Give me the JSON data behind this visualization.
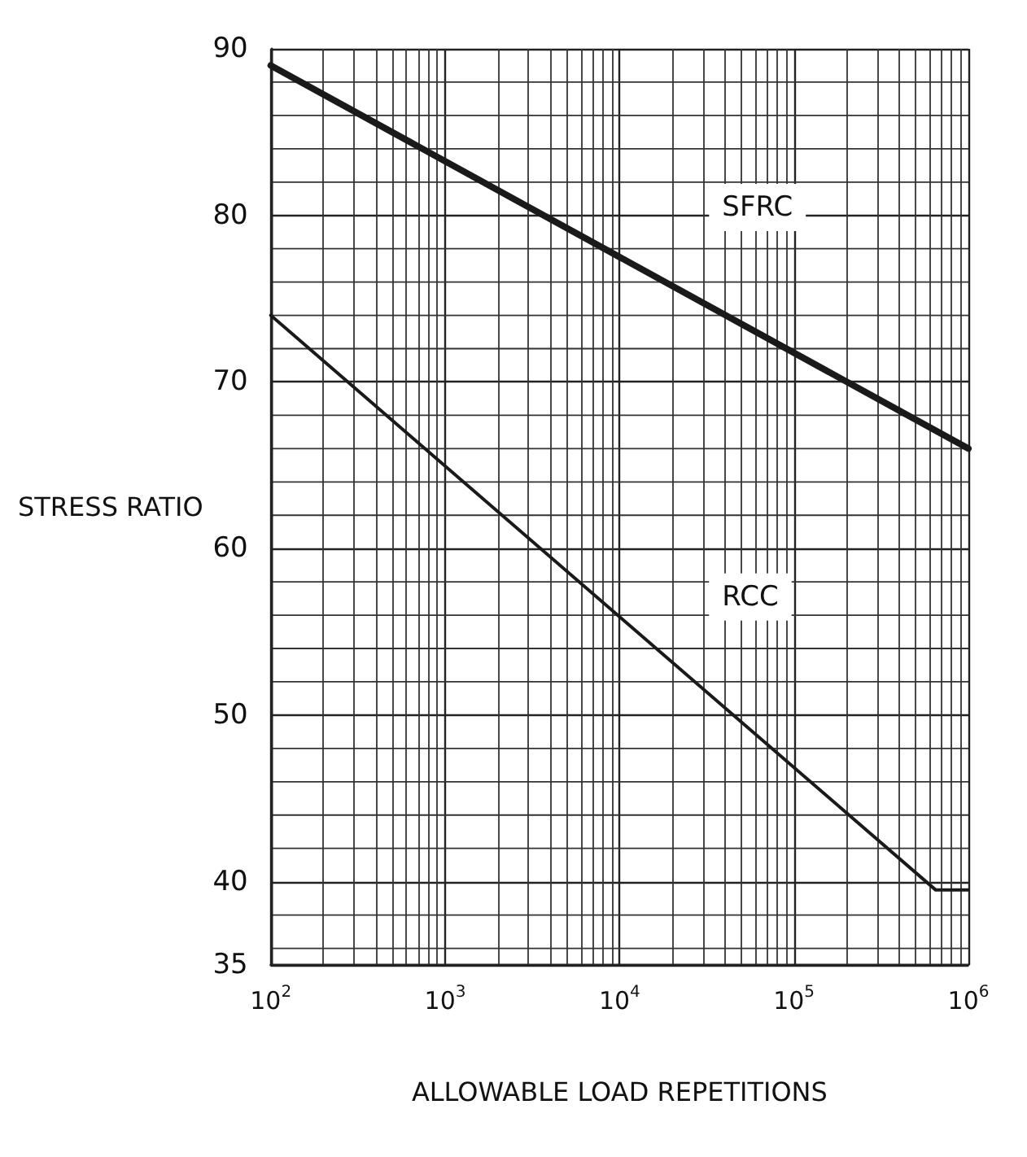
{
  "chart_data": {
    "type": "line",
    "xlabel": "ALLOWABLE LOAD REPETITIONS",
    "ylabel": "STRESS RATIO",
    "log": "x",
    "grid": true,
    "legend": false,
    "marker": "none",
    "line_style": "solid",
    "xlim": [
      100,
      1000000
    ],
    "ylim": [
      35,
      90
    ],
    "xticks": [
      {
        "value": 100,
        "label": "10$^{2}$"
      },
      {
        "value": 1000,
        "label": "10$^{3}$"
      },
      {
        "value": 10000,
        "label": "10$^{4}$"
      },
      {
        "value": 100000,
        "label": "10$^{5}$"
      },
      {
        "value": 1000000,
        "label": "10$^{6}$"
      }
    ],
    "yticks": [
      35,
      40,
      50,
      60,
      70,
      80,
      90
    ],
    "series": [
      {
        "name": "SFRC",
        "color": "#1a1a1a",
        "x": [
          100,
          1000000
        ],
        "values": [
          89,
          66
        ]
      },
      {
        "name": "RCC",
        "color": "#1a1a1a",
        "x": [
          100,
          650000,
          1000000
        ],
        "values": [
          74,
          39.5,
          39.5
        ]
      }
    ]
  }
}
